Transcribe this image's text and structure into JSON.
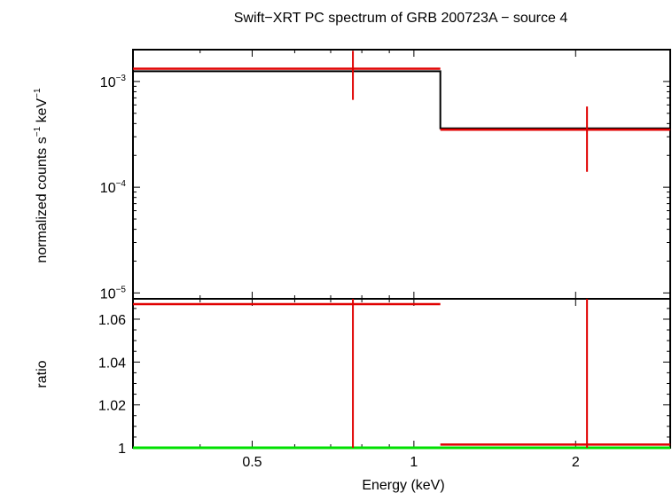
{
  "chart_data": [
    {
      "type": "line",
      "panel": "spectrum",
      "title": "Swift−XRT PC spectrum of GRB 200723A − source 4",
      "xlabel": "Energy (keV)",
      "ylabel_text": "normalized counts s",
      "ylabel_exp1": "−1",
      "ylabel_mid": " keV",
      "ylabel_exp2": "−1",
      "x_scale": "log",
      "y_scale": "log",
      "xlim": [
        0.3,
        3.0
      ],
      "ylim": [
        8.8e-06,
        0.002
      ],
      "y_ticks": [
        {
          "base": "10",
          "exp": "−3",
          "value": 0.001
        },
        {
          "base": "10",
          "exp": "−4",
          "value": 0.0001
        },
        {
          "base": "10",
          "exp": "−5",
          "value": 1e-05
        }
      ],
      "series": [
        {
          "kind": "model",
          "color": "#000000",
          "steps": [
            {
              "x0": 0.3,
              "x1": 1.12,
              "y": 0.00125
            },
            {
              "x0": 1.12,
              "x1": 3.0,
              "y": 0.00036
            }
          ]
        },
        {
          "kind": "data",
          "color": "#e00000",
          "points": [
            {
              "x": 0.77,
              "xlo": 0.3,
              "xhi": 1.12,
              "y": 0.00132,
              "ylo": 0.00067,
              "yhi": 0.00195
            },
            {
              "x": 2.1,
              "xlo": 1.12,
              "xhi": 3.0,
              "y": 0.00035,
              "ylo": 0.00014,
              "yhi": 0.00058
            }
          ]
        }
      ],
      "grid": false
    },
    {
      "type": "line",
      "panel": "ratio",
      "xlabel": "Energy (keV)",
      "ylabel": "ratio",
      "x_scale": "log",
      "y_scale": "linear",
      "xlim": [
        0.3,
        3.0
      ],
      "ylim": [
        1.0,
        1.0695
      ],
      "x_ticks": [
        {
          "label": "0.5",
          "value": 0.5
        },
        {
          "label": "1",
          "value": 1
        },
        {
          "label": "2",
          "value": 2
        }
      ],
      "y_ticks": [
        {
          "label": "1",
          "value": 1.0
        },
        {
          "label": "1.02",
          "value": 1.02
        },
        {
          "label": "1.04",
          "value": 1.04
        },
        {
          "label": "1.06",
          "value": 1.06
        }
      ],
      "reference_line": {
        "y": 1.0,
        "color": "#00e000"
      },
      "series": [
        {
          "kind": "data",
          "color": "#e00000",
          "points": [
            {
              "x": 0.77,
              "xlo": 0.3,
              "xhi": 1.12,
              "y": 1.067,
              "ylo": 1.0,
              "yhi": 1.0695
            },
            {
              "x": 2.1,
              "xlo": 1.12,
              "xhi": 3.0,
              "y": 1.0015,
              "ylo": 1.0,
              "yhi": 1.0695
            }
          ]
        }
      ],
      "grid": false
    }
  ]
}
